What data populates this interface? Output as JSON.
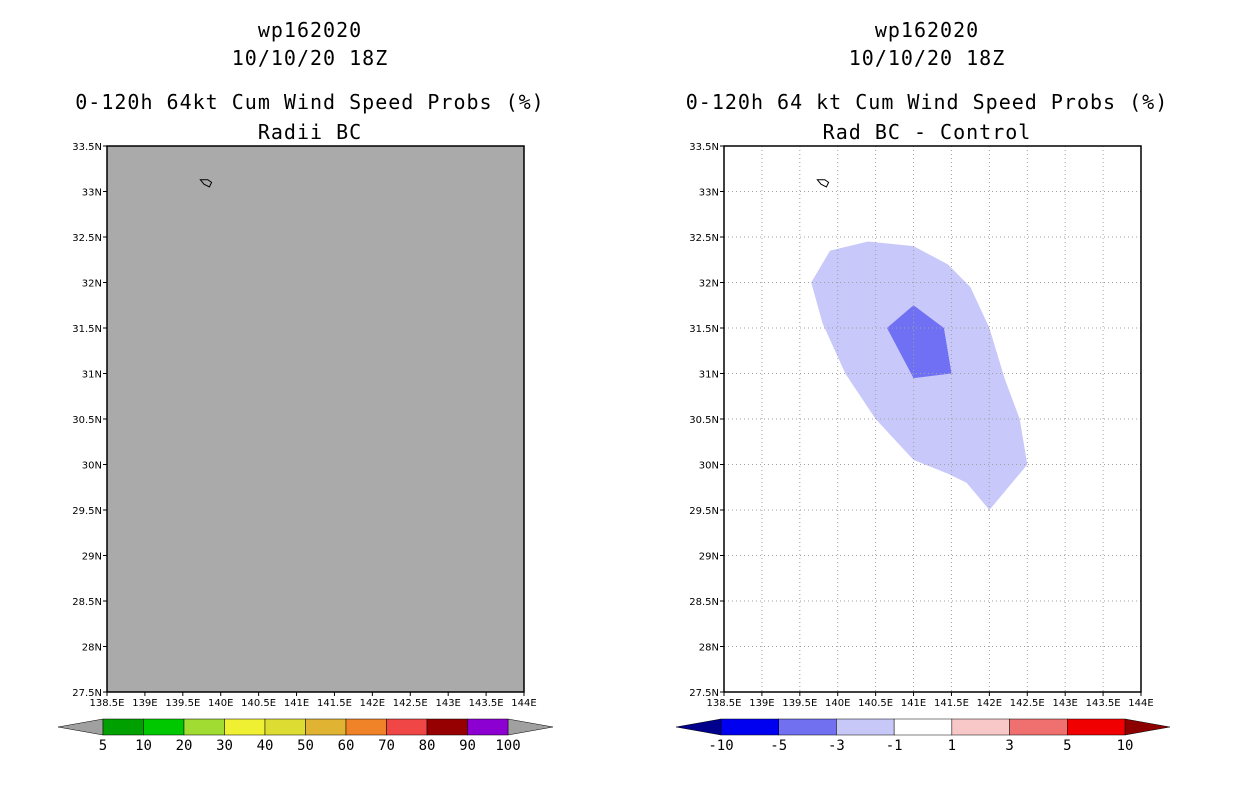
{
  "left_panel": {
    "storm_id": "wp162020",
    "datetime": "10/10/20 18Z",
    "product": "0-120h 64kt Cum Wind Speed Probs (%)",
    "subtitle": "Radii BC",
    "field_color": "#aaaaaa",
    "colorbar": {
      "colors": [
        "#00a000",
        "#00c800",
        "#a0dc32",
        "#f0f032",
        "#dcdc32",
        "#e0b432",
        "#f08228",
        "#f04646",
        "#960000",
        "#8c00d2"
      ],
      "end_colors": [
        "#a0a0a0",
        "#a0a0a0"
      ],
      "labels": [
        "5",
        "10",
        "20",
        "30",
        "40",
        "50",
        "60",
        "70",
        "80",
        "90",
        "100"
      ]
    }
  },
  "right_panel": {
    "storm_id": "wp162020",
    "datetime": "10/10/20 18Z",
    "product": "0-120h 64 kt Cum Wind Speed Probs (%)",
    "subtitle": "Rad BC - Control",
    "contours": [
      {
        "level": "-3 to -1",
        "color": "#c8c8fa",
        "polygon": [
          [
            139.65,
            32.0
          ],
          [
            139.9,
            32.35
          ],
          [
            140.4,
            32.45
          ],
          [
            141.0,
            32.4
          ],
          [
            141.45,
            32.2
          ],
          [
            141.75,
            31.95
          ],
          [
            142.0,
            31.5
          ],
          [
            142.2,
            30.95
          ],
          [
            142.4,
            30.5
          ],
          [
            142.5,
            30.0
          ],
          [
            142.0,
            29.5
          ],
          [
            141.7,
            29.8
          ],
          [
            141.45,
            29.9
          ],
          [
            141.0,
            30.05
          ],
          [
            140.5,
            30.5
          ],
          [
            140.1,
            31.0
          ],
          [
            139.8,
            31.55
          ]
        ]
      },
      {
        "level": "-5 to -3",
        "color": "#7070f5",
        "polygon": [
          [
            140.65,
            31.5
          ],
          [
            141.0,
            31.75
          ],
          [
            141.4,
            31.5
          ],
          [
            141.5,
            31.0
          ],
          [
            141.0,
            30.95
          ]
        ]
      }
    ],
    "colorbar": {
      "colors": [
        "#0000f0",
        "#7070f0",
        "#c8c8f8",
        "#ffffff",
        "#f8c8c8",
        "#f07070",
        "#f00000"
      ],
      "end_colors": [
        "#00008c",
        "#8c0000"
      ],
      "labels": [
        "-10",
        "-5",
        "-3",
        "-1",
        "1",
        "3",
        "5",
        "10"
      ]
    }
  },
  "map": {
    "lon_min": 138.5,
    "lon_max": 144,
    "lat_min": 27.5,
    "lat_max": 33.5,
    "lon_ticks": [
      "138.5E",
      "139E",
      "139.5E",
      "140E",
      "140.5E",
      "141E",
      "141.5E",
      "142E",
      "142.5E",
      "143E",
      "143.5E",
      "144E"
    ],
    "lat_ticks": [
      "27.5N",
      "28N",
      "28.5N",
      "29N",
      "29.5N",
      "30N",
      "30.5N",
      "31N",
      "31.5N",
      "32N",
      "32.5N",
      "33N",
      "33.5N"
    ],
    "island": [
      [
        139.73,
        33.13
      ],
      [
        139.78,
        33.08
      ],
      [
        139.85,
        33.05
      ],
      [
        139.88,
        33.1
      ],
      [
        139.83,
        33.13
      ]
    ]
  }
}
